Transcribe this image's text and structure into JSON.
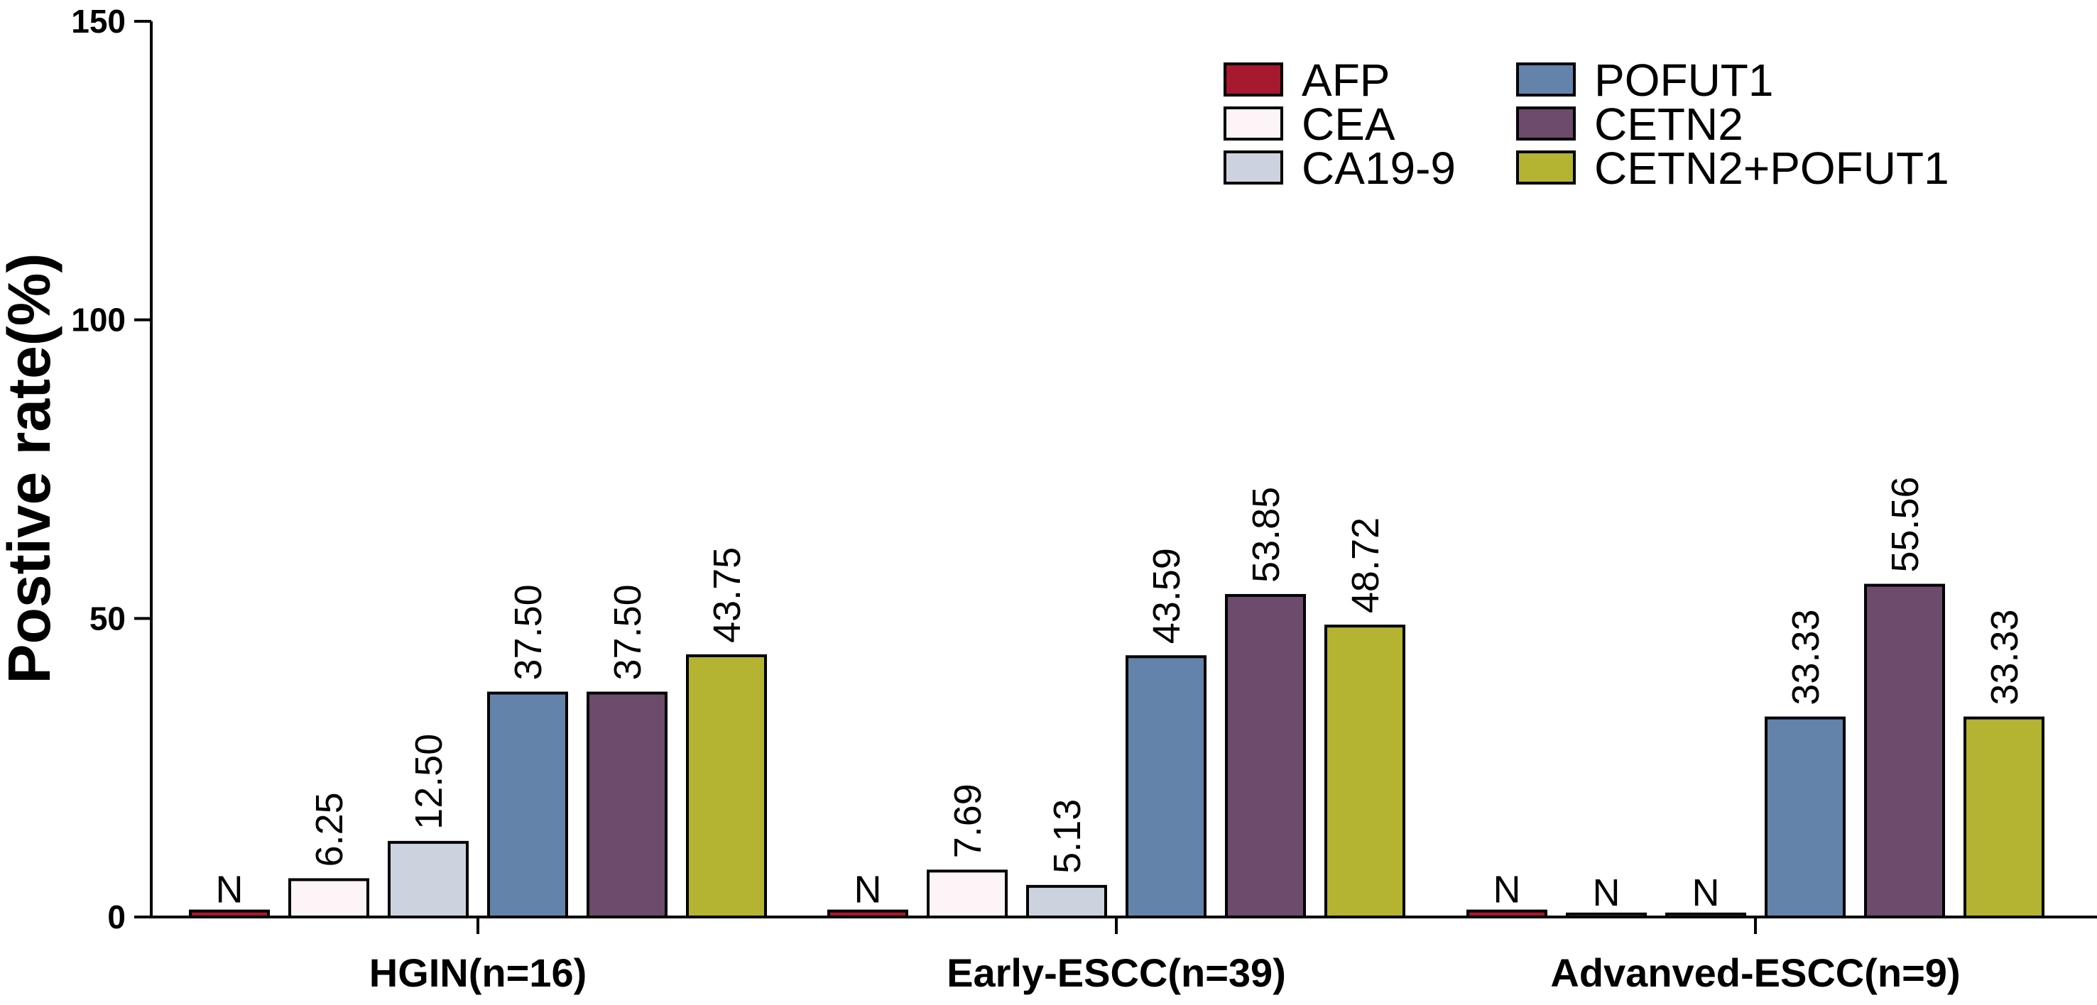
{
  "chart_data": {
    "type": "bar",
    "title": "",
    "xlabel": "",
    "ylabel": "Postive rate(%)",
    "ylim": [
      0,
      150
    ],
    "yticks": [
      0,
      50,
      100,
      150
    ],
    "categories": [
      "HGIN(n=16)",
      "Early-ESCC(n=39)",
      "Advanved-ESCC(n=9)"
    ],
    "legend_position": "top-right",
    "series": [
      {
        "name": "AFP",
        "color": "#a6192e",
        "values": [
          1,
          1,
          1
        ],
        "labels": [
          "N",
          "N",
          "N"
        ]
      },
      {
        "name": "CEA",
        "color": "#fcf4f6",
        "values": [
          6.25,
          7.69,
          0.5
        ],
        "labels": [
          "6.25",
          "7.69",
          "N"
        ]
      },
      {
        "name": "CA19-9",
        "color": "#ccd3de",
        "values": [
          12.5,
          5.13,
          0.5
        ],
        "labels": [
          "12.50",
          "5.13",
          "N"
        ]
      },
      {
        "name": "POFUT1",
        "color": "#6483ab",
        "values": [
          37.5,
          43.59,
          33.33
        ],
        "labels": [
          "37.50",
          "43.59",
          "33.33"
        ]
      },
      {
        "name": "CETN2",
        "color": "#6c4b6d",
        "values": [
          37.5,
          53.85,
          55.56
        ],
        "labels": [
          "37.50",
          "53.85",
          "55.56"
        ]
      },
      {
        "name": "CETN2+POFUT1",
        "color": "#b4b332",
        "values": [
          43.75,
          48.72,
          33.33
        ],
        "labels": [
          "43.75",
          "48.72",
          "33.33"
        ]
      }
    ]
  }
}
